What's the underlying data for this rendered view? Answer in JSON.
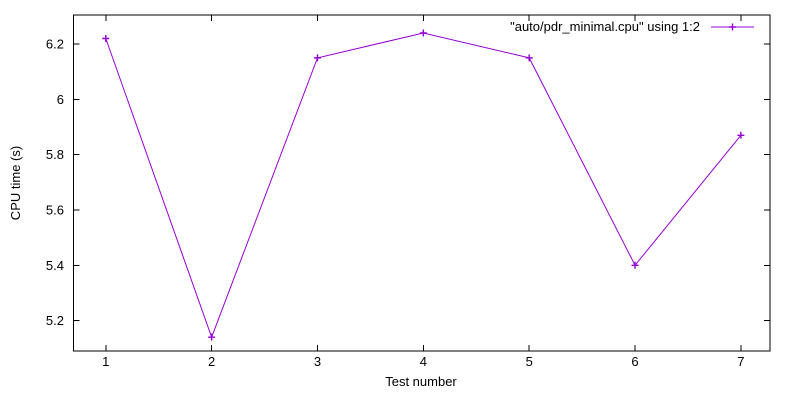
{
  "chart_data": {
    "type": "line",
    "title": "",
    "xlabel": "Test number",
    "ylabel": "CPU time (s)",
    "grid": false,
    "legend_position": "top-right-inside",
    "background_color": "#ffffff",
    "border_color": "#000000",
    "text_color": "#000000",
    "series": [
      {
        "name": "\"auto/pdr_minimal.cpu\" using 1:2",
        "color": "#9400D3",
        "marker": "plus",
        "x": [
          1,
          2,
          3,
          4,
          5,
          6,
          7
        ],
        "y": [
          6.22,
          5.14,
          6.15,
          6.24,
          6.15,
          5.4,
          5.87
        ]
      }
    ],
    "xticks": [
      {
        "value": 1,
        "label": "1"
      },
      {
        "value": 2,
        "label": "2"
      },
      {
        "value": 3,
        "label": "3"
      },
      {
        "value": 4,
        "label": "4"
      },
      {
        "value": 5,
        "label": "5"
      },
      {
        "value": 6,
        "label": "6"
      },
      {
        "value": 7,
        "label": "7"
      }
    ],
    "yticks": [
      {
        "value": 5.2,
        "label": "5.2"
      },
      {
        "value": 5.4,
        "label": "5.4"
      },
      {
        "value": 5.6,
        "label": "5.6"
      },
      {
        "value": 5.8,
        "label": "5.8"
      },
      {
        "value": 6.0,
        "label": "6"
      },
      {
        "value": 6.2,
        "label": "6.2"
      }
    ],
    "xlim": [
      0.695,
      7.275
    ],
    "ylim": [
      5.09,
      6.305
    ]
  }
}
